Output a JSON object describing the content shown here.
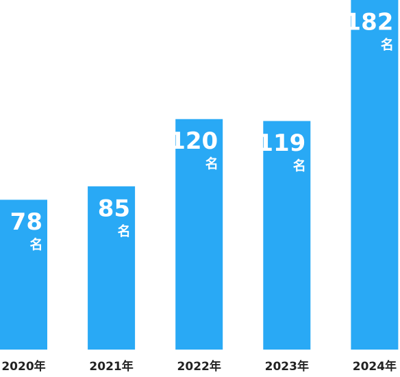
{
  "chart_data": {
    "type": "bar",
    "categories": [
      "2020年",
      "2021年",
      "2022年",
      "2023年",
      "2024年"
    ],
    "values": [
      78,
      85,
      120,
      119,
      182
    ],
    "unit": "名",
    "color": "#29a9f5",
    "ylim": [
      0,
      182
    ]
  }
}
